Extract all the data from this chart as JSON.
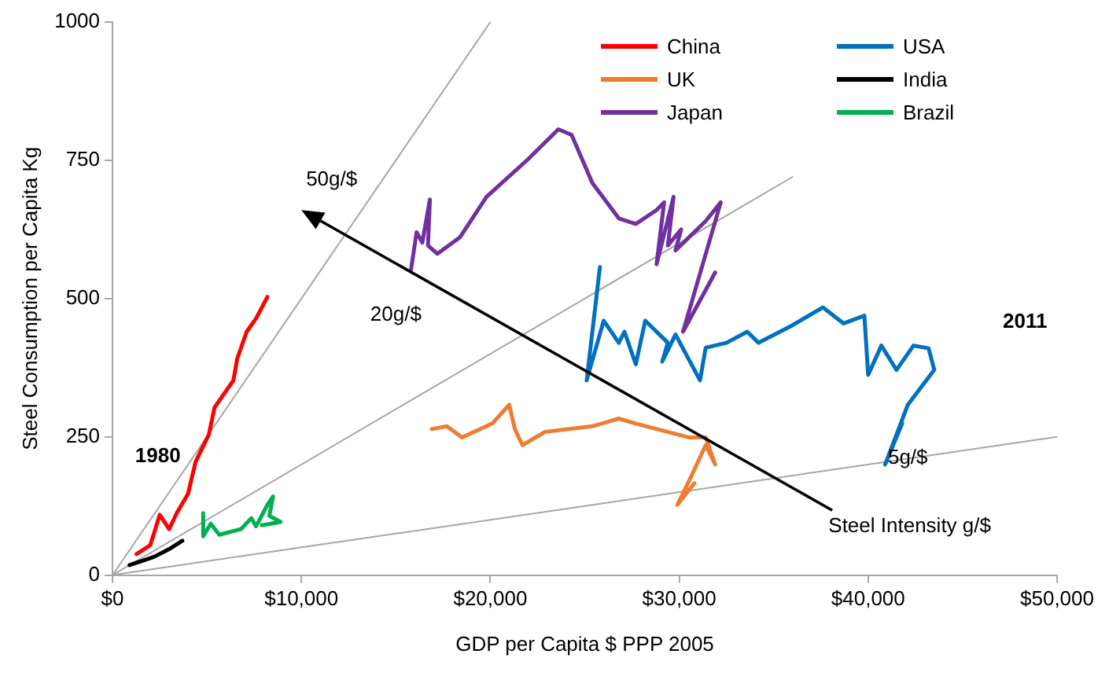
{
  "chart_data": {
    "type": "line",
    "xlabel": "GDP per Capita $ PPP 2005",
    "ylabel": "Steel Consumption per Capita Kg",
    "xlim": [
      0,
      50000
    ],
    "xticks": [
      {
        "value": 0,
        "label": "$0"
      },
      {
        "value": 10000,
        "label": "$10,000"
      },
      {
        "value": 20000,
        "label": "$20,000"
      },
      {
        "value": 30000,
        "label": "$30,000"
      },
      {
        "value": 40000,
        "label": "$40,000"
      },
      {
        "value": 50000,
        "label": "$50,000"
      }
    ],
    "ylim": [
      0,
      1000
    ],
    "yticks": [
      0,
      250,
      500,
      750,
      1000
    ],
    "grid": false,
    "legend": "top right",
    "marker": "none",
    "line_style": "solid",
    "series": [
      {
        "name": "China",
        "color": "#ff0000",
        "x": [
          1270,
          2000,
          2500,
          3000,
          3400,
          4000,
          4400,
          5100,
          5400,
          6400,
          6600,
          7100,
          7600,
          8200
        ],
        "values": [
          38,
          54,
          109,
          83,
          112,
          147,
          205,
          254,
          303,
          352,
          391,
          440,
          464,
          503
        ]
      },
      {
        "name": "USA",
        "color": "#0070c0",
        "x": [
          25800,
          25100,
          26000,
          26800,
          27100,
          27700,
          28200,
          29400,
          29100,
          29800,
          31100,
          31400,
          32500,
          33600,
          34200,
          35900,
          37600,
          38700,
          39800,
          40000,
          40700,
          41500,
          42400,
          43200,
          43500,
          42100,
          40900,
          41800
        ],
        "values": [
          557,
          352,
          460,
          420,
          440,
          381,
          460,
          420,
          386,
          435,
          352,
          411,
          420,
          440,
          420,
          450,
          484,
          455,
          469,
          362,
          415,
          371,
          415,
          410,
          371,
          308,
          200,
          274
        ]
      },
      {
        "name": "UK",
        "color": "#ed7d31",
        "x": [
          16900,
          17700,
          18500,
          20100,
          21000,
          21300,
          21700,
          22900,
          25400,
          26800,
          27700,
          30500,
          31400,
          31900,
          31400,
          30600,
          29900,
          30800
        ],
        "values": [
          264,
          269,
          249,
          274,
          308,
          264,
          235,
          259,
          269,
          283,
          274,
          249,
          249,
          200,
          235,
          176,
          127,
          166
        ]
      },
      {
        "name": "India",
        "color": "#000000",
        "x": [
          900,
          1500,
          2200,
          3000,
          3700
        ],
        "values": [
          18,
          25,
          33,
          47,
          62
        ]
      },
      {
        "name": "Japan",
        "color": "#7030a0",
        "x": [
          15800,
          16100,
          16400,
          16800,
          16700,
          17200,
          18400,
          19800,
          22000,
          23600,
          24300,
          25400,
          26800,
          27700,
          28800,
          29200,
          28800,
          29700,
          29400,
          30100,
          29800,
          31400,
          32200,
          30200,
          31900
        ],
        "values": [
          552,
          620,
          601,
          679,
          596,
          581,
          611,
          684,
          752,
          806,
          796,
          709,
          645,
          635,
          660,
          674,
          562,
          684,
          596,
          625,
          587,
          640,
          674,
          440,
          547
        ]
      },
      {
        "name": "Brazil",
        "color": "#00b050",
        "x": [
          4800,
          4800,
          5200,
          5650,
          6800,
          7350,
          7600,
          8200,
          8500,
          8300,
          8900,
          7900
        ],
        "values": [
          112,
          70,
          93,
          73,
          83,
          103,
          88,
          127,
          142,
          107,
          96,
          90
        ]
      },
      {
        "color": "#a6a6a6",
        "x": [
          0,
          20000
        ],
        "values": [
          0,
          1000
        ]
      },
      {
        "color": "#a6a6a6",
        "x": [
          0,
          36000
        ],
        "values": [
          0,
          720
        ]
      },
      {
        "color": "#a6a6a6",
        "x": [
          0,
          50000
        ],
        "values": [
          0,
          250
        ]
      }
    ],
    "annotations": [
      "50g/$",
      "20g/$",
      "5g/$",
      "Steel Intensity g/$",
      "1980",
      "2011"
    ]
  }
}
